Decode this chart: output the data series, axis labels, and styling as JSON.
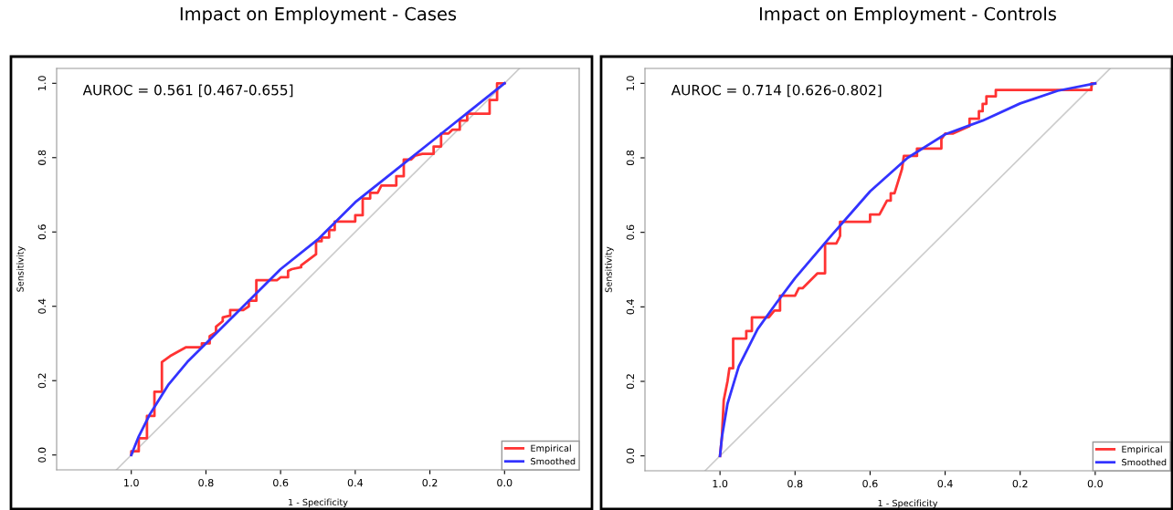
{
  "chart_data": [
    {
      "type": "line",
      "title": "Impact on Employment - Cases",
      "xlabel": "1 - Specificity",
      "ylabel": "Sensitivity",
      "annotations": [
        "AUROC = 0.561 [0.467-0.655]"
      ],
      "xlim": [
        1.2,
        -0.2
      ],
      "ylim": [
        -0.04,
        1.04
      ],
      "xticks": [
        {
          "value": 1.0,
          "label": "1.0"
        },
        {
          "value": 0.8,
          "label": "0.8"
        },
        {
          "value": 0.6,
          "label": "0.6"
        },
        {
          "value": 0.4,
          "label": "0.4"
        },
        {
          "value": 0.2,
          "label": "0.2"
        },
        {
          "value": 0.0,
          "label": "0.0"
        }
      ],
      "yticks": [
        {
          "value": 0.0,
          "label": "0.0"
        },
        {
          "value": 0.2,
          "label": "0.2"
        },
        {
          "value": 0.4,
          "label": "0.4"
        },
        {
          "value": 0.6,
          "label": "0.6"
        },
        {
          "value": 0.8,
          "label": "0.8"
        },
        {
          "value": 1.0,
          "label": "1.0"
        }
      ],
      "grid": false,
      "legend": "bottom right",
      "marker": "none",
      "series": [
        {
          "color": "#cccccc",
          "x": [
            1.04,
            -0.04
          ],
          "values": [
            -0.04,
            1.04
          ]
        },
        {
          "name": "Empirical",
          "color": "#ff3333",
          "x": [
            1.0,
            1.0,
            0.98,
            0.98,
            0.958,
            0.958,
            0.938,
            0.938,
            0.918,
            0.918,
            0.896,
            0.853,
            0.811,
            0.811,
            0.79,
            0.79,
            0.773,
            0.773,
            0.755,
            0.755,
            0.735,
            0.735,
            0.7,
            0.685,
            0.685,
            0.665,
            0.665,
            0.61,
            0.6,
            0.58,
            0.58,
            0.57,
            0.545,
            0.545,
            0.505,
            0.505,
            0.49,
            0.49,
            0.47,
            0.47,
            0.455,
            0.455,
            0.4,
            0.4,
            0.38,
            0.38,
            0.36,
            0.36,
            0.34,
            0.33,
            0.29,
            0.29,
            0.27,
            0.27,
            0.25,
            0.24,
            0.22,
            0.19,
            0.19,
            0.17,
            0.17,
            0.15,
            0.14,
            0.12,
            0.12,
            0.1,
            0.1,
            0.04,
            0.04,
            0.02,
            0.02,
            0.0
          ],
          "values": [
            0.0,
            0.01,
            0.01,
            0.045,
            0.045,
            0.105,
            0.105,
            0.17,
            0.17,
            0.25,
            0.266,
            0.29,
            0.29,
            0.3,
            0.3,
            0.32,
            0.33,
            0.345,
            0.36,
            0.37,
            0.375,
            0.39,
            0.39,
            0.4,
            0.415,
            0.415,
            0.47,
            0.47,
            0.478,
            0.478,
            0.495,
            0.5,
            0.505,
            0.51,
            0.54,
            0.575,
            0.575,
            0.585,
            0.585,
            0.605,
            0.605,
            0.628,
            0.628,
            0.645,
            0.645,
            0.69,
            0.69,
            0.705,
            0.705,
            0.725,
            0.725,
            0.75,
            0.75,
            0.795,
            0.795,
            0.805,
            0.81,
            0.81,
            0.83,
            0.83,
            0.865,
            0.865,
            0.875,
            0.875,
            0.9,
            0.9,
            0.918,
            0.918,
            0.955,
            0.955,
            1.0,
            1.0
          ]
        },
        {
          "name": "Smoothed",
          "color": "#3333ff",
          "x": [
            1.0,
            0.98,
            0.95,
            0.9,
            0.85,
            0.8,
            0.7,
            0.6,
            0.5,
            0.4,
            0.3,
            0.2,
            0.1,
            0.0
          ],
          "values": [
            0.0,
            0.05,
            0.11,
            0.19,
            0.25,
            0.3,
            0.4,
            0.5,
            0.58,
            0.68,
            0.76,
            0.84,
            0.92,
            1.0
          ]
        }
      ]
    },
    {
      "type": "line",
      "title": "Impact on Employment - Controls",
      "xlabel": "1 - Specificity",
      "ylabel": "Sensitivity",
      "annotations": [
        "AUROC = 0.714 [0.626-0.802]"
      ],
      "xlim": [
        1.2,
        -0.2
      ],
      "ylim": [
        -0.04,
        1.04
      ],
      "xticks": [
        {
          "value": 1.0,
          "label": "1.0"
        },
        {
          "value": 0.8,
          "label": "0.8"
        },
        {
          "value": 0.6,
          "label": "0.6"
        },
        {
          "value": 0.4,
          "label": "0.4"
        },
        {
          "value": 0.2,
          "label": "0.2"
        },
        {
          "value": 0.0,
          "label": "0.0"
        }
      ],
      "yticks": [
        {
          "value": 0.0,
          "label": "0.0"
        },
        {
          "value": 0.2,
          "label": "0.2"
        },
        {
          "value": 0.4,
          "label": "0.4"
        },
        {
          "value": 0.6,
          "label": "0.6"
        },
        {
          "value": 0.8,
          "label": "0.8"
        },
        {
          "value": 1.0,
          "label": "1.0"
        }
      ],
      "grid": false,
      "legend": "bottom right",
      "marker": "none",
      "series": [
        {
          "color": "#cccccc",
          "x": [
            1.04,
            -0.04
          ],
          "values": [
            -0.04,
            1.04
          ]
        },
        {
          "name": "Empirical",
          "color": "#ff3333",
          "x": [
            1.0,
            0.995,
            0.99,
            0.98,
            0.975,
            0.965,
            0.965,
            0.93,
            0.93,
            0.915,
            0.915,
            0.87,
            0.855,
            0.84,
            0.84,
            0.8,
            0.79,
            0.78,
            0.76,
            0.74,
            0.72,
            0.72,
            0.69,
            0.68,
            0.68,
            0.6,
            0.6,
            0.575,
            0.555,
            0.545,
            0.545,
            0.535,
            0.515,
            0.51,
            0.475,
            0.475,
            0.41,
            0.41,
            0.4,
            0.38,
            0.335,
            0.335,
            0.31,
            0.31,
            0.3,
            0.3,
            0.29,
            0.29,
            0.265,
            0.265,
            0.01,
            0.01,
            0.0
          ],
          "values": [
            0.0,
            0.05,
            0.15,
            0.2,
            0.235,
            0.235,
            0.315,
            0.315,
            0.335,
            0.335,
            0.372,
            0.372,
            0.39,
            0.39,
            0.43,
            0.43,
            0.45,
            0.45,
            0.47,
            0.49,
            0.49,
            0.57,
            0.57,
            0.59,
            0.628,
            0.628,
            0.648,
            0.648,
            0.685,
            0.685,
            0.705,
            0.705,
            0.77,
            0.805,
            0.805,
            0.825,
            0.825,
            0.85,
            0.865,
            0.865,
            0.885,
            0.905,
            0.905,
            0.925,
            0.925,
            0.945,
            0.945,
            0.965,
            0.965,
            0.982,
            0.982,
            1.0,
            1.0
          ]
        },
        {
          "name": "Smoothed",
          "color": "#3333ff",
          "x": [
            1.0,
            0.995,
            0.98,
            0.95,
            0.9,
            0.85,
            0.8,
            0.7,
            0.6,
            0.5,
            0.4,
            0.3,
            0.2,
            0.1,
            0.0
          ],
          "values": [
            0.0,
            0.05,
            0.14,
            0.24,
            0.34,
            0.41,
            0.477,
            0.595,
            0.71,
            0.8,
            0.863,
            0.9,
            0.946,
            0.98,
            1.0
          ]
        }
      ]
    }
  ]
}
